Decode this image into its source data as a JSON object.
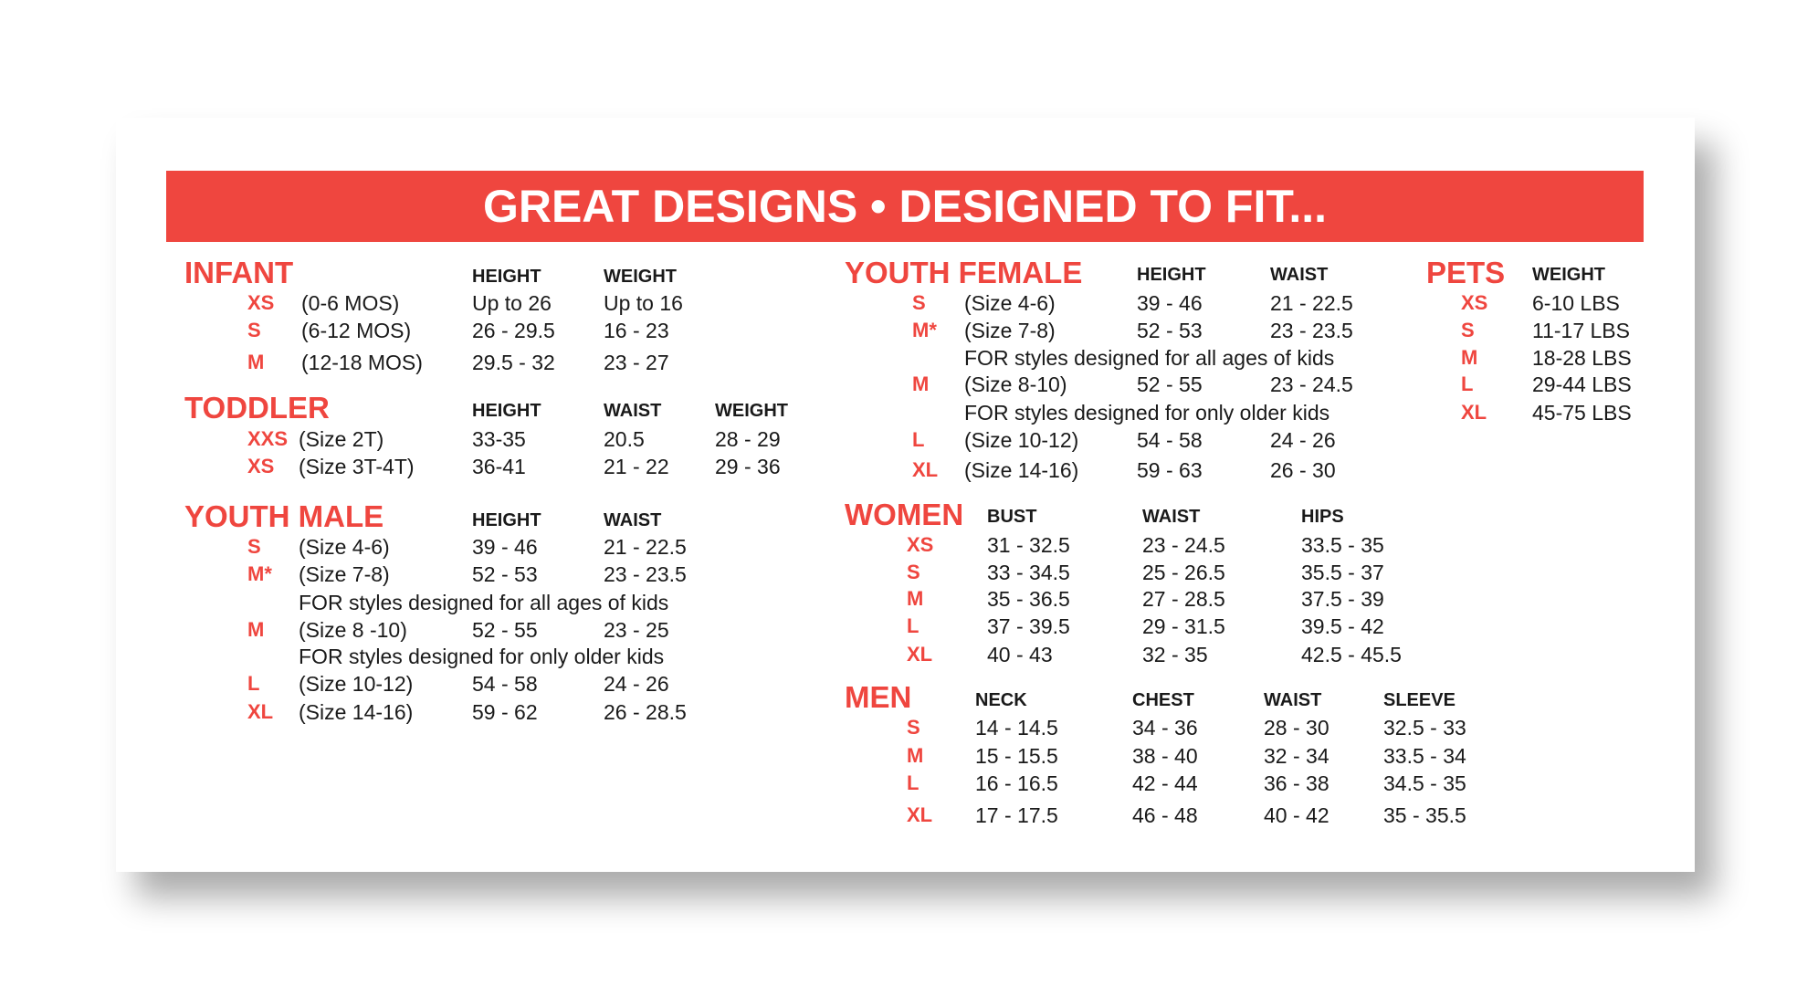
{
  "banner": {
    "title": "GREAT DESIGNS • DESIGNED TO FIT..."
  },
  "colors": {
    "accent": "#ef463f",
    "text": "#1a1a1a",
    "background": "#ffffff"
  },
  "sections": [
    {
      "id": "infant",
      "title": "INFANT",
      "headers": [
        "HEIGHT",
        "WEIGHT"
      ],
      "rows": [
        {
          "size": "XS",
          "desc": "(0-6 MOS)",
          "values": [
            "Up to 26",
            "Up to 16"
          ]
        },
        {
          "size": "S",
          "desc": "(6-12 MOS)",
          "values": [
            "26 - 29.5",
            "16 - 23"
          ]
        },
        {
          "size": "M",
          "desc": "(12-18 MOS)",
          "values": [
            "29.5 - 32",
            "23 - 27"
          ]
        }
      ]
    },
    {
      "id": "toddler",
      "title": "TODDLER",
      "headers": [
        "HEIGHT",
        "WAIST",
        "WEIGHT"
      ],
      "rows": [
        {
          "size": "XXS",
          "desc": "(Size 2T)",
          "values": [
            "33-35",
            "20.5",
            "28 - 29"
          ]
        },
        {
          "size": "XS",
          "desc": "(Size 3T-4T)",
          "values": [
            "36-41",
            "21 - 22",
            "29 - 36"
          ]
        }
      ]
    },
    {
      "id": "youth-male",
      "title": "YOUTH MALE",
      "headers": [
        "HEIGHT",
        "WAIST"
      ],
      "rows": [
        {
          "size": "S",
          "desc": "(Size 4-6)",
          "values": [
            "39 - 46",
            "21 - 22.5"
          ]
        },
        {
          "size": "M*",
          "desc": "(Size 7-8)",
          "values": [
            "52 - 53",
            "23 - 23.5"
          ]
        },
        {
          "note": "FOR styles designed for all ages of kids"
        },
        {
          "size": "M",
          "desc": "(Size 8 -10)",
          "values": [
            "52 - 55",
            "23 - 25"
          ]
        },
        {
          "note": "FOR styles designed for only older kids"
        },
        {
          "size": "L",
          "desc": "(Size 10-12)",
          "values": [
            "54 - 58",
            "24 - 26"
          ]
        },
        {
          "size": "XL",
          "desc": "(Size 14-16)",
          "values": [
            "59 - 62",
            "26 - 28.5"
          ]
        }
      ]
    },
    {
      "id": "youth-female",
      "title": "YOUTH FEMALE",
      "headers": [
        "HEIGHT",
        "WAIST"
      ],
      "rows": [
        {
          "size": "S",
          "desc": "(Size 4-6)",
          "values": [
            "39 - 46",
            "21 - 22.5"
          ]
        },
        {
          "size": "M*",
          "desc": "(Size 7-8)",
          "values": [
            "52 - 53",
            "23 - 23.5"
          ]
        },
        {
          "note": "FOR styles designed for all ages of kids"
        },
        {
          "size": "M",
          "desc": "(Size 8-10)",
          "values": [
            "52 - 55",
            "23 - 24.5"
          ]
        },
        {
          "note": "FOR styles designed for only older kids"
        },
        {
          "size": "L",
          "desc": "(Size 10-12)",
          "values": [
            "54 - 58",
            "24 - 26"
          ]
        },
        {
          "size": "XL",
          "desc": "(Size 14-16)",
          "values": [
            "59 - 63",
            "26 - 30"
          ]
        }
      ]
    },
    {
      "id": "pets",
      "title": "PETS",
      "headers": [
        "WEIGHT"
      ],
      "rows": [
        {
          "size": "XS",
          "values": [
            "6-10 LBS"
          ]
        },
        {
          "size": "S",
          "values": [
            "11-17 LBS"
          ]
        },
        {
          "size": "M",
          "values": [
            "18-28 LBS"
          ]
        },
        {
          "size": "L",
          "values": [
            "29-44 LBS"
          ]
        },
        {
          "size": "XL",
          "values": [
            "45-75 LBS"
          ]
        }
      ]
    },
    {
      "id": "women",
      "title": "WOMEN",
      "headers": [
        "BUST",
        "WAIST",
        "HIPS"
      ],
      "rows": [
        {
          "size": "XS",
          "values": [
            "31 - 32.5",
            "23 - 24.5",
            "33.5 - 35"
          ]
        },
        {
          "size": "S",
          "values": [
            "33 - 34.5",
            "25 - 26.5",
            "35.5 - 37"
          ]
        },
        {
          "size": "M",
          "values": [
            "35 - 36.5",
            "27 - 28.5",
            "37.5 - 39"
          ]
        },
        {
          "size": "L",
          "values": [
            "37 - 39.5",
            "29 - 31.5",
            "39.5 - 42"
          ]
        },
        {
          "size": "XL",
          "values": [
            "40 - 43",
            "32 - 35",
            "42.5 - 45.5"
          ]
        }
      ]
    },
    {
      "id": "men",
      "title": "MEN",
      "headers": [
        "NECK",
        "CHEST",
        "WAIST",
        "SLEEVE"
      ],
      "rows": [
        {
          "size": "S",
          "values": [
            "14 - 14.5",
            "34 - 36",
            "28 - 30",
            "32.5 - 33"
          ]
        },
        {
          "size": "M",
          "values": [
            "15 - 15.5",
            "38 - 40",
            "32 - 34",
            "33.5 - 34"
          ]
        },
        {
          "size": "L",
          "values": [
            "16 - 16.5",
            "42 - 44",
            "36 - 38",
            "34.5 - 35"
          ]
        },
        {
          "size": "XL",
          "values": [
            "17 - 17.5",
            "46 - 48",
            "40 - 42",
            "35 - 35.5"
          ]
        }
      ]
    }
  ]
}
